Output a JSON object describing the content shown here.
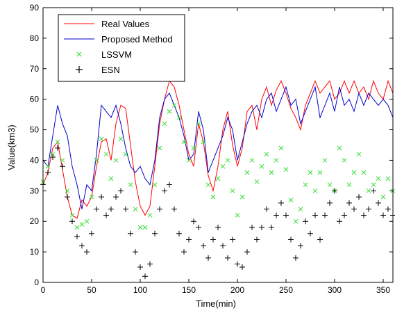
{
  "chart_data": {
    "type": "line",
    "title": "",
    "xlabel": "Time(min)",
    "ylabel": "Value(km3)",
    "xlim": [
      0,
      360
    ],
    "ylim": [
      0,
      90
    ],
    "xticks": [
      "0",
      "50",
      "100",
      "150",
      "200",
      "250",
      "300",
      "350"
    ],
    "yticks": [
      "0",
      "10",
      "20",
      "30",
      "40",
      "50",
      "60",
      "70",
      "80",
      "90"
    ],
    "grid": false,
    "legend_position": "top-left",
    "series": [
      {
        "name": "Real Values",
        "style": "line",
        "color": "#ff0000",
        "x": [
          0,
          5,
          10,
          15,
          20,
          25,
          30,
          35,
          40,
          45,
          50,
          55,
          60,
          65,
          70,
          75,
          80,
          85,
          90,
          95,
          100,
          105,
          110,
          115,
          120,
          125,
          130,
          135,
          140,
          145,
          150,
          155,
          160,
          165,
          170,
          175,
          180,
          185,
          190,
          195,
          200,
          205,
          210,
          215,
          220,
          225,
          230,
          235,
          240,
          245,
          250,
          255,
          260,
          265,
          270,
          275,
          280,
          285,
          290,
          295,
          300,
          305,
          310,
          315,
          320,
          325,
          330,
          335,
          340,
          345,
          350,
          355,
          360
        ],
        "values": [
          32,
          36,
          44,
          46,
          37,
          28,
          22,
          21,
          27,
          25,
          28,
          38,
          46,
          47,
          40,
          52,
          58,
          57,
          45,
          33,
          25,
          22,
          25,
          38,
          52,
          60,
          66,
          64,
          58,
          50,
          42,
          38,
          52,
          46,
          35,
          30,
          38,
          50,
          56,
          45,
          38,
          44,
          56,
          58,
          50,
          60,
          64,
          58,
          63,
          66,
          62,
          57,
          54,
          50,
          58,
          62,
          66,
          62,
          64,
          66,
          60,
          62,
          66,
          62,
          66,
          62,
          64,
          60,
          66,
          62,
          60,
          66,
          62
        ]
      },
      {
        "name": "Proposed Method",
        "style": "line",
        "color": "#0000cc",
        "x": [
          0,
          5,
          10,
          15,
          20,
          25,
          30,
          35,
          40,
          45,
          50,
          55,
          60,
          65,
          70,
          75,
          80,
          85,
          90,
          95,
          100,
          105,
          110,
          115,
          120,
          125,
          130,
          135,
          140,
          145,
          150,
          155,
          160,
          165,
          170,
          175,
          180,
          185,
          190,
          195,
          200,
          205,
          210,
          215,
          220,
          225,
          230,
          235,
          240,
          245,
          250,
          255,
          260,
          265,
          270,
          275,
          280,
          285,
          290,
          295,
          300,
          305,
          310,
          315,
          320,
          325,
          330,
          335,
          340,
          345,
          350,
          355,
          360
        ],
        "values": [
          40,
          38,
          48,
          58,
          52,
          48,
          38,
          32,
          24,
          32,
          30,
          42,
          58,
          56,
          54,
          58,
          52,
          44,
          38,
          36,
          38,
          34,
          32,
          40,
          54,
          60,
          62,
          58,
          54,
          48,
          40,
          42,
          56,
          50,
          36,
          40,
          44,
          48,
          54,
          50,
          40,
          46,
          52,
          56,
          58,
          54,
          60,
          62,
          56,
          60,
          64,
          58,
          60,
          52,
          56,
          60,
          64,
          54,
          58,
          62,
          56,
          64,
          58,
          60,
          56,
          62,
          58,
          62,
          60,
          58,
          60,
          58,
          54
        ]
      },
      {
        "name": "LSSVM",
        "style": "markers",
        "marker": "x",
        "color": "#33dd33",
        "x": [
          0,
          5,
          10,
          15,
          20,
          25,
          30,
          35,
          40,
          45,
          50,
          55,
          60,
          65,
          70,
          75,
          80,
          85,
          90,
          95,
          100,
          105,
          110,
          115,
          120,
          125,
          130,
          135,
          140,
          145,
          150,
          155,
          160,
          165,
          170,
          175,
          180,
          185,
          190,
          195,
          200,
          205,
          210,
          215,
          220,
          225,
          230,
          235,
          240,
          245,
          250,
          255,
          260,
          265,
          270,
          275,
          280,
          285,
          290,
          295,
          300,
          305,
          310,
          315,
          320,
          325,
          330,
          335,
          340,
          345,
          350,
          355,
          360
        ],
        "values": [
          33,
          38,
          42,
          46,
          40,
          30,
          22,
          18,
          19,
          20,
          28,
          40,
          47,
          42,
          34,
          40,
          47,
          42,
          32,
          24,
          18,
          18,
          22,
          32,
          44,
          52,
          56,
          58,
          54,
          46,
          40,
          44,
          52,
          46,
          32,
          28,
          34,
          38,
          40,
          30,
          22,
          28,
          36,
          40,
          33,
          38,
          42,
          36,
          40,
          44,
          37,
          27,
          20,
          24,
          32,
          36,
          30,
          36,
          40,
          32,
          30,
          44,
          40,
          32,
          36,
          42,
          36,
          30,
          32,
          34,
          28,
          34,
          30
        ]
      },
      {
        "name": "ESN",
        "style": "markers",
        "marker": "plus",
        "color": "#000000",
        "x": [
          0,
          5,
          10,
          15,
          20,
          25,
          30,
          35,
          40,
          45,
          50,
          55,
          60,
          65,
          70,
          75,
          80,
          85,
          90,
          95,
          100,
          105,
          110,
          115,
          120,
          125,
          130,
          135,
          140,
          145,
          150,
          155,
          160,
          165,
          170,
          175,
          180,
          185,
          190,
          195,
          200,
          205,
          210,
          215,
          220,
          225,
          230,
          235,
          240,
          245,
          250,
          255,
          260,
          265,
          270,
          275,
          280,
          285,
          290,
          295,
          300,
          305,
          310,
          315,
          320,
          325,
          330,
          335,
          340,
          345,
          350,
          355,
          360
        ],
        "values": [
          32,
          36,
          41,
          44,
          38,
          28,
          20,
          15,
          12,
          10,
          16,
          24,
          28,
          22,
          24,
          28,
          30,
          24,
          16,
          10,
          5,
          2,
          6,
          16,
          24,
          30,
          32,
          24,
          16,
          10,
          14,
          20,
          18,
          12,
          8,
          14,
          18,
          12,
          8,
          14,
          6,
          5,
          10,
          18,
          14,
          18,
          24,
          18,
          22,
          26,
          22,
          14,
          8,
          12,
          20,
          16,
          22,
          14,
          22,
          26,
          30,
          20,
          22,
          26,
          24,
          28,
          22,
          24,
          30,
          26,
          22,
          24,
          22
        ]
      }
    ]
  }
}
